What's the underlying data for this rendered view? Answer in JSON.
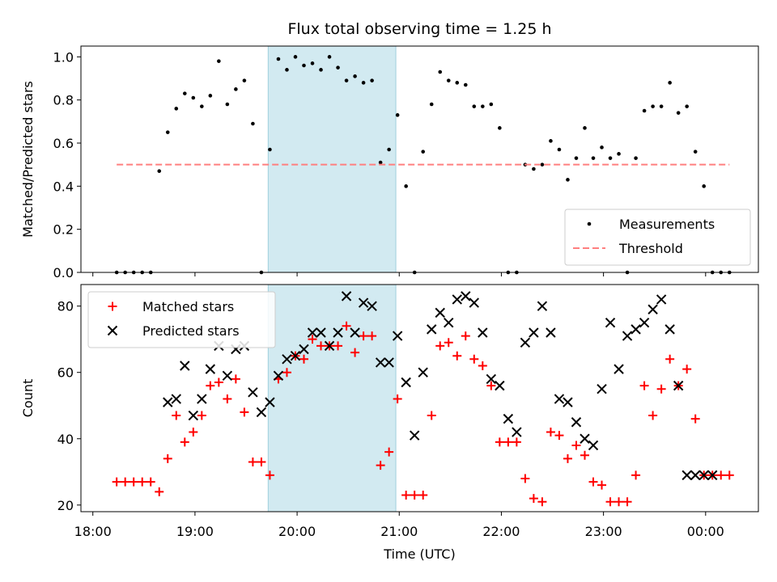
{
  "chart_data": [
    {
      "type": "scatter",
      "title": "Flux total observing time = 1.25 h",
      "xlabel": "",
      "ylabel": "Matched/Predicted stars",
      "ylim": [
        0,
        1.05
      ],
      "yticks": [
        "0.0",
        "0.2",
        "0.4",
        "0.6",
        "0.8",
        "1.0"
      ],
      "ytick_values": [
        0,
        0.2,
        0.4,
        0.6,
        0.8,
        1.0
      ],
      "shaded_region": [
        "19:43",
        "20:58"
      ],
      "shaded_color": "#add8e6",
      "legend_position": "lower-right",
      "series": [
        {
          "name": "Measurements",
          "marker": "dot",
          "color": "#000000",
          "x": [
            "18:14",
            "18:19",
            "18:24",
            "18:29",
            "18:34",
            "18:39",
            "18:44",
            "18:49",
            "18:54",
            "18:59",
            "19:04",
            "19:09",
            "19:14",
            "19:19",
            "19:24",
            "19:29",
            "19:34",
            "19:39",
            "19:44",
            "19:49",
            "19:54",
            "19:59",
            "20:04",
            "20:09",
            "20:14",
            "20:19",
            "20:24",
            "20:29",
            "20:34",
            "20:39",
            "20:44",
            "20:49",
            "20:54",
            "20:59",
            "21:04",
            "21:09",
            "21:14",
            "21:19",
            "21:24",
            "21:29",
            "21:34",
            "21:39",
            "21:44",
            "21:49",
            "21:54",
            "21:59",
            "22:04",
            "22:09",
            "22:14",
            "22:19",
            "22:24",
            "22:29",
            "22:34",
            "22:39",
            "22:44",
            "22:49",
            "22:54",
            "22:59",
            "23:04",
            "23:09",
            "23:14",
            "23:19",
            "23:24",
            "23:29",
            "23:34",
            "23:39",
            "23:44",
            "23:49",
            "23:54",
            "23:59",
            "00:04",
            "00:09",
            "00:14"
          ],
          "y": [
            0,
            0,
            0,
            0,
            0,
            0.47,
            0.65,
            0.76,
            0.83,
            0.81,
            0.77,
            0.82,
            0.98,
            0.78,
            0.85,
            0.89,
            0.69,
            0,
            0.57,
            0.99,
            0.94,
            1.0,
            0.96,
            0.97,
            0.94,
            1.0,
            0.95,
            0.89,
            0.91,
            0.88,
            0.89,
            0.51,
            0.57,
            0.73,
            0.4,
            0,
            0.56,
            0.78,
            0.93,
            0.89,
            0.88,
            0.87,
            0.77,
            0.77,
            0.78,
            0.67,
            0,
            0,
            0.5,
            0.48,
            0.5,
            0.61,
            0.57,
            0.43,
            0.53,
            0.67,
            0.53,
            0.58,
            0.53,
            0.55,
            0,
            0.53,
            0.75,
            0.77,
            0.77,
            0.88,
            0.74,
            0.77,
            0.56,
            0.4,
            0,
            0,
            0
          ]
        },
        {
          "name": "Threshold",
          "marker": "dashed-line",
          "color": "#ff7f7f",
          "x": [
            "18:14",
            "00:14"
          ],
          "y": [
            0.5,
            0.5
          ]
        }
      ]
    },
    {
      "type": "scatter",
      "title": "",
      "xlabel": "Time (UTC)",
      "ylabel": "Count",
      "ylim": [
        18,
        86.5
      ],
      "yticks": [
        "20",
        "40",
        "60",
        "80"
      ],
      "ytick_values": [
        20,
        40,
        60,
        80
      ],
      "xticks": [
        "18:00",
        "19:00",
        "20:00",
        "21:00",
        "22:00",
        "23:00",
        "00:00"
      ],
      "xtick_values": [
        "18:00",
        "19:00",
        "20:00",
        "21:00",
        "22:00",
        "23:00",
        "00:00"
      ],
      "shaded_region": [
        "19:43",
        "20:58"
      ],
      "shaded_color": "#add8e6",
      "legend_position": "upper-left",
      "series": [
        {
          "name": "Matched stars",
          "marker": "plus",
          "color": "#ff0000",
          "x": [
            "18:14",
            "18:19",
            "18:24",
            "18:29",
            "18:34",
            "18:39",
            "18:44",
            "18:49",
            "18:54",
            "18:59",
            "19:04",
            "19:09",
            "19:14",
            "19:19",
            "19:24",
            "19:29",
            "19:34",
            "19:39",
            "19:44",
            "19:49",
            "19:54",
            "19:59",
            "20:04",
            "20:09",
            "20:14",
            "20:19",
            "20:24",
            "20:29",
            "20:34",
            "20:39",
            "20:44",
            "20:49",
            "20:54",
            "20:59",
            "21:04",
            "21:09",
            "21:14",
            "21:19",
            "21:24",
            "21:29",
            "21:34",
            "21:39",
            "21:44",
            "21:49",
            "21:54",
            "21:59",
            "22:04",
            "22:09",
            "22:14",
            "22:19",
            "22:24",
            "22:29",
            "22:34",
            "22:39",
            "22:44",
            "22:49",
            "22:54",
            "22:59",
            "23:04",
            "23:09",
            "23:14",
            "23:19",
            "23:24",
            "23:29",
            "23:34",
            "23:39",
            "23:44",
            "23:49",
            "23:54",
            "23:59",
            "00:04",
            "00:09",
            "00:14"
          ],
          "y": [
            27,
            27,
            27,
            27,
            27,
            24,
            34,
            47,
            39,
            42,
            47,
            56,
            57,
            52,
            58,
            48,
            33,
            33,
            29,
            58,
            60,
            65,
            64,
            70,
            68,
            68,
            68,
            74,
            66,
            71,
            71,
            32,
            36,
            52,
            23,
            23,
            23,
            47,
            68,
            69,
            65,
            71,
            64,
            62,
            56,
            39,
            39,
            39,
            28,
            22,
            21,
            42,
            41,
            34,
            38,
            35,
            27,
            26,
            21,
            21,
            21,
            29,
            56,
            47,
            55,
            64,
            56,
            61,
            46,
            29,
            29,
            29,
            29
          ]
        },
        {
          "name": "Predicted stars",
          "marker": "x",
          "color": "#000000",
          "x": [
            "18:44",
            "18:49",
            "18:54",
            "18:59",
            "19:04",
            "19:09",
            "19:14",
            "19:19",
            "19:24",
            "19:29",
            "19:34",
            "19:39",
            "19:44",
            "19:49",
            "19:54",
            "19:59",
            "20:04",
            "20:09",
            "20:14",
            "20:19",
            "20:24",
            "20:29",
            "20:34",
            "20:39",
            "20:44",
            "20:49",
            "20:54",
            "20:59",
            "21:04",
            "21:09",
            "21:14",
            "21:19",
            "21:24",
            "21:29",
            "21:34",
            "21:39",
            "21:44",
            "21:49",
            "21:54",
            "21:59",
            "22:04",
            "22:09",
            "22:14",
            "22:19",
            "22:24",
            "22:29",
            "22:34",
            "22:39",
            "22:44",
            "22:49",
            "22:54",
            "22:59",
            "23:04",
            "23:09",
            "23:14",
            "23:19",
            "23:24",
            "23:29",
            "23:34",
            "23:39",
            "23:44",
            "23:49",
            "23:54",
            "23:59",
            "00:04"
          ],
          "y": [
            51,
            52,
            62,
            47,
            52,
            61,
            68,
            59,
            67,
            68,
            54,
            48,
            51,
            59,
            64,
            65,
            67,
            72,
            72,
            68,
            72,
            83,
            72,
            81,
            80,
            63,
            63,
            71,
            57,
            41,
            60,
            73,
            78,
            75,
            82,
            83,
            81,
            72,
            58,
            56,
            46,
            42,
            69,
            72,
            80,
            72,
            52,
            51,
            45,
            40,
            38,
            55,
            75,
            61,
            71,
            73,
            75,
            79,
            82,
            73,
            56,
            29,
            29,
            29,
            29
          ]
        }
      ]
    }
  ]
}
